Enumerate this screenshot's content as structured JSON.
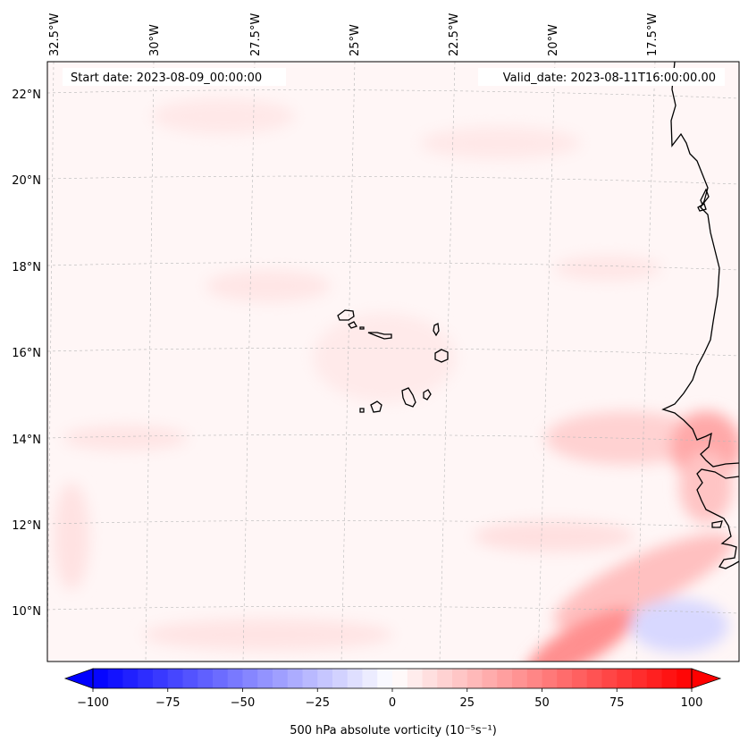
{
  "header": {
    "start_label": "Start date: 2023-08-09_00:00:00",
    "valid_label": "Valid_date: 2023-08-11T16:00:00.00"
  },
  "map": {
    "longitude_labels": [
      "32.5°W",
      "30°W",
      "27.5°W",
      "25°W",
      "22.5°W",
      "20°W",
      "17.5°W"
    ],
    "latitude_labels": [
      "22°N",
      "20°N",
      "18°N",
      "16°N",
      "14°N",
      "12°N",
      "10°N"
    ],
    "field": "500 hPa absolute vorticity",
    "features": [
      "coastline-west-africa",
      "cape-verde-islands"
    ]
  },
  "colorbar": {
    "label": "500 hPa absolute vorticity (10⁻⁵s⁻¹)",
    "ticks": [
      "−100",
      "−75",
      "−50",
      "−25",
      "0",
      "25",
      "50",
      "75",
      "100"
    ],
    "min": -100,
    "max": 100,
    "step": 5,
    "low_color": "#0000ff",
    "mid_color": "#ffffff",
    "high_color": "#ff0000"
  },
  "colors": {
    "background_tint": "#fff5f5",
    "grid": "#b0b0b0",
    "coast": "#000000"
  }
}
